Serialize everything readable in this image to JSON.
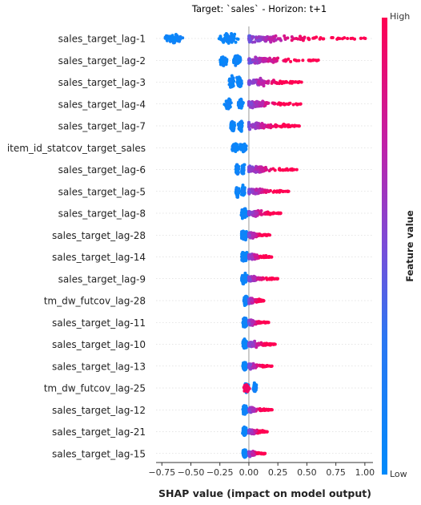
{
  "chart_data": {
    "type": "scatter",
    "subtype": "shap-beeswarm",
    "title": "Target: `sales` - Horizon: t+1",
    "xlabel": "SHAP value (impact on model output)",
    "ylabel": "",
    "xlim": [
      -0.8,
      1.07
    ],
    "xticks": [
      -0.75,
      -0.5,
      -0.25,
      0.0,
      0.25,
      0.5,
      0.75,
      1.0
    ],
    "xtick_labels": [
      "−0.75",
      "−0.50",
      "−0.25",
      "0.00",
      "0.25",
      "0.50",
      "0.75",
      "1.00"
    ],
    "grid": true,
    "zero_line": true,
    "colorbar": {
      "label": "Feature value",
      "high": "High",
      "low": "Low",
      "color_low": "#008afb",
      "color_high": "#ff0052"
    },
    "features": [
      {
        "name": "sales_target_lag-1",
        "low_range": [
          -0.72,
          -0.02
        ],
        "low_peaks": [
          -0.65,
          -0.17
        ],
        "high_range": [
          0.0,
          1.02
        ],
        "high_peak": 0.15,
        "spread": 1.0
      },
      {
        "name": "sales_target_lag-2",
        "low_range": [
          -0.3,
          -0.02
        ],
        "low_peaks": [
          -0.22,
          -0.1
        ],
        "high_range": [
          0.0,
          0.6
        ],
        "high_peak": 0.12,
        "spread": 0.9
      },
      {
        "name": "sales_target_lag-3",
        "low_range": [
          -0.2,
          -0.02
        ],
        "low_peaks": [
          -0.15,
          -0.08
        ],
        "high_range": [
          0.0,
          0.48
        ],
        "high_peak": 0.1,
        "spread": 0.85
      },
      {
        "name": "sales_target_lag-4",
        "low_range": [
          -0.22,
          -0.02
        ],
        "low_peaks": [
          -0.18,
          -0.07
        ],
        "high_range": [
          0.0,
          0.45
        ],
        "high_peak": 0.1,
        "spread": 0.8
      },
      {
        "name": "sales_target_lag-7",
        "low_range": [
          -0.19,
          -0.02
        ],
        "low_peaks": [
          -0.14,
          -0.07
        ],
        "high_range": [
          0.0,
          0.44
        ],
        "high_peak": 0.1,
        "spread": 0.75
      },
      {
        "name": "item_id_statcov_target_sales",
        "low_range": [
          -0.25,
          0.0
        ],
        "low_peaks": [
          -0.12,
          -0.05
        ],
        "high_range": [
          0.0,
          0.0
        ],
        "high_peak": 0.0,
        "spread": 0.6
      },
      {
        "name": "sales_target_lag-6",
        "low_range": [
          -0.14,
          -0.02
        ],
        "low_peaks": [
          -0.1,
          -0.05
        ],
        "high_range": [
          0.0,
          0.42
        ],
        "high_peak": 0.1,
        "spread": 0.7
      },
      {
        "name": "sales_target_lag-5",
        "low_range": [
          -0.15,
          -0.02
        ],
        "low_peaks": [
          -0.1,
          -0.05
        ],
        "high_range": [
          0.0,
          0.35
        ],
        "high_peak": 0.09,
        "spread": 0.7
      },
      {
        "name": "sales_target_lag-8",
        "low_range": [
          -0.07,
          -0.01
        ],
        "low_peaks": [
          -0.05,
          -0.03
        ],
        "high_range": [
          0.0,
          0.28
        ],
        "high_peak": 0.05,
        "spread": 0.6
      },
      {
        "name": "sales_target_lag-28",
        "low_range": [
          -0.07,
          -0.01
        ],
        "low_peaks": [
          -0.05,
          -0.03
        ],
        "high_range": [
          0.0,
          0.18
        ],
        "high_peak": 0.04,
        "spread": 0.55
      },
      {
        "name": "sales_target_lag-14",
        "low_range": [
          -0.07,
          -0.01
        ],
        "low_peaks": [
          -0.05,
          -0.03
        ],
        "high_range": [
          0.0,
          0.2
        ],
        "high_peak": 0.05,
        "spread": 0.55
      },
      {
        "name": "sales_target_lag-9",
        "low_range": [
          -0.11,
          -0.01
        ],
        "low_peaks": [
          -0.05,
          -0.03
        ],
        "high_range": [
          0.0,
          0.26
        ],
        "high_peak": 0.04,
        "spread": 0.5
      },
      {
        "name": "tm_dw_futcov_lag-28",
        "low_range": [
          -0.06,
          0.0
        ],
        "low_peaks": [
          -0.03,
          -0.02
        ],
        "high_range": [
          0.0,
          0.13
        ],
        "high_peak": 0.03,
        "spread": 0.5
      },
      {
        "name": "sales_target_lag-11",
        "low_range": [
          -0.08,
          -0.01
        ],
        "low_peaks": [
          -0.04,
          -0.03
        ],
        "high_range": [
          0.0,
          0.17
        ],
        "high_peak": 0.03,
        "spread": 0.5
      },
      {
        "name": "sales_target_lag-10",
        "low_range": [
          -0.08,
          -0.01
        ],
        "low_peaks": [
          -0.04,
          -0.03
        ],
        "high_range": [
          0.0,
          0.24
        ],
        "high_peak": 0.03,
        "spread": 0.5
      },
      {
        "name": "sales_target_lag-13",
        "low_range": [
          -0.07,
          -0.01
        ],
        "low_peaks": [
          -0.04,
          -0.03
        ],
        "high_range": [
          0.0,
          0.2
        ],
        "high_peak": 0.03,
        "spread": 0.45
      },
      {
        "name": "tm_dw_futcov_lag-25",
        "low_range": [
          -0.06,
          0.08
        ],
        "low_peaks": [
          -0.02,
          0.05
        ],
        "high_range": [
          -0.07,
          0.02
        ],
        "high_peak": -0.02,
        "spread": 0.55
      },
      {
        "name": "sales_target_lag-12",
        "low_range": [
          -0.06,
          -0.01
        ],
        "low_peaks": [
          -0.04,
          -0.03
        ],
        "high_range": [
          0.0,
          0.2
        ],
        "high_peak": 0.03,
        "spread": 0.45
      },
      {
        "name": "sales_target_lag-21",
        "low_range": [
          -0.06,
          -0.01
        ],
        "low_peaks": [
          -0.04,
          -0.03
        ],
        "high_range": [
          0.0,
          0.16
        ],
        "high_peak": 0.03,
        "spread": 0.45
      },
      {
        "name": "sales_target_lag-15",
        "low_range": [
          -0.06,
          -0.01
        ],
        "low_peaks": [
          -0.04,
          -0.03
        ],
        "high_range": [
          0.0,
          0.14
        ],
        "high_peak": 0.03,
        "spread": 0.45
      }
    ]
  }
}
